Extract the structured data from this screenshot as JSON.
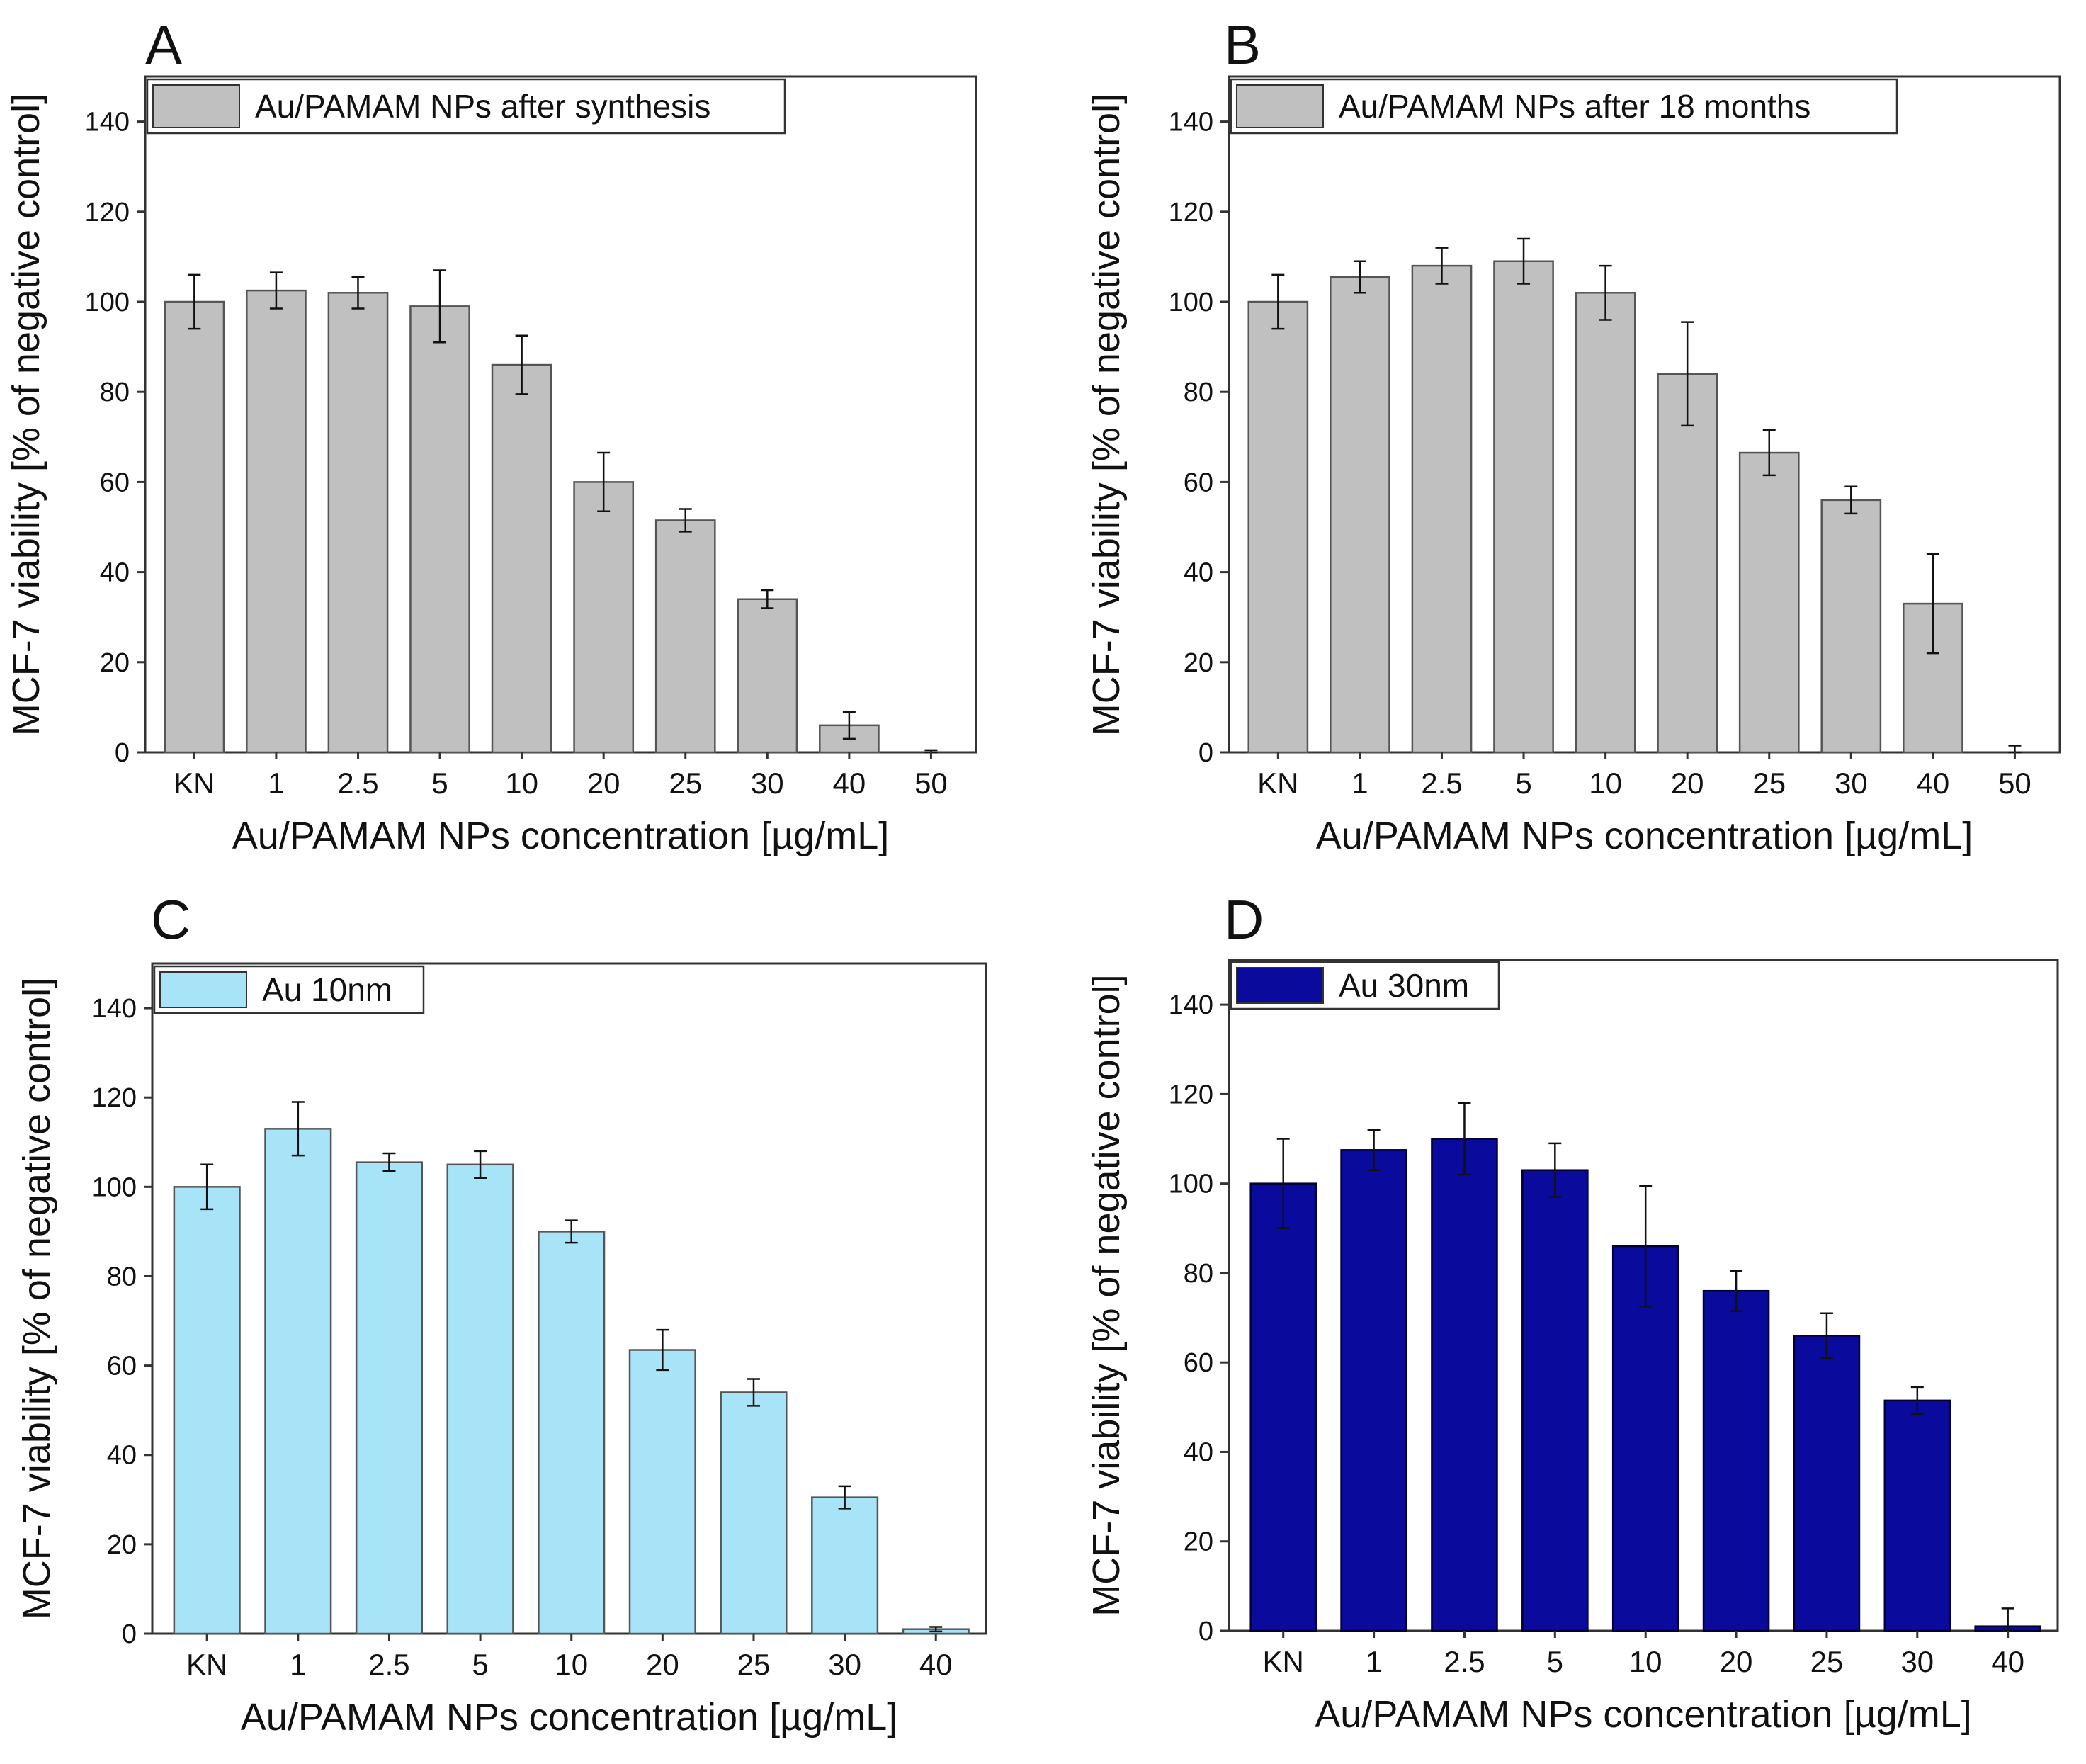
{
  "chart_data": [
    {
      "panel": "A",
      "type": "bar",
      "title": "",
      "legend": "Au/PAMAM  NPs after synthesis",
      "legend_position": "top-left",
      "bar_color": "#c0c0c0",
      "xlabel": "Au/PAMAM NPs concentration [µg/mL]",
      "ylabel": "MCF-7 viability [% of negative control]",
      "ylim": [
        0,
        150
      ],
      "yticks": [
        "0",
        "20",
        "40",
        "60",
        "80",
        "100",
        "120",
        "140"
      ],
      "categories": [
        "KN",
        "1",
        "2.5",
        "5",
        "10",
        "20",
        "25",
        "30",
        "40",
        "50"
      ],
      "values": [
        100,
        102.5,
        102,
        99,
        86,
        60,
        51.5,
        34,
        6,
        0
      ],
      "errors": [
        6,
        4,
        3.5,
        8,
        6.5,
        6.5,
        2.5,
        2,
        3,
        0.5
      ]
    },
    {
      "panel": "B",
      "type": "bar",
      "title": "",
      "legend": "Au/PAMAM  NPs after 18 months",
      "legend_position": "top-left",
      "bar_color": "#c0c0c0",
      "xlabel": "Au/PAMAM NPs concentration [µg/mL]",
      "ylabel": "MCF-7 viability [% of negative control]",
      "ylim": [
        0,
        150
      ],
      "yticks": [
        "0",
        "20",
        "40",
        "60",
        "80",
        "100",
        "120",
        "140"
      ],
      "categories": [
        "KN",
        "1",
        "2.5",
        "5",
        "10",
        "20",
        "25",
        "30",
        "40",
        "50"
      ],
      "values": [
        100,
        105.5,
        108,
        109,
        102,
        84,
        66.5,
        56,
        33,
        0
      ],
      "errors": [
        6,
        3.5,
        4,
        5,
        6,
        11.5,
        5,
        3,
        11,
        1.5
      ]
    },
    {
      "panel": "C",
      "type": "bar",
      "title": "",
      "legend": "Au  10nm",
      "legend_position": "top-left",
      "bar_color": "#a8e4f8",
      "xlabel": "Au/PAMAM NPs concentration [µg/mL]",
      "ylabel": "MCF-7 viability [% of negative control]",
      "ylim": [
        0,
        150
      ],
      "yticks": [
        "0",
        "20",
        "40",
        "60",
        "80",
        "100",
        "120",
        "140"
      ],
      "categories": [
        "KN",
        "1",
        "2.5",
        "5",
        "10",
        "20",
        "25",
        "30",
        "40"
      ],
      "values": [
        100,
        113,
        105.5,
        105,
        90,
        63.5,
        54,
        30.5,
        1
      ],
      "errors": [
        5,
        6,
        2,
        3,
        2.5,
        4.5,
        3,
        2.5,
        0.5
      ]
    },
    {
      "panel": "D",
      "type": "bar",
      "title": "",
      "legend": "Au  30nm",
      "legend_position": "top-left",
      "bar_color": "#0a0a9c",
      "xlabel": "Au/PAMAM NPs concentration [µg/mL]",
      "ylabel": "MCF-7 viability [% of negative control]",
      "ylim": [
        0,
        150
      ],
      "yticks": [
        "0",
        "20",
        "40",
        "60",
        "80",
        "100",
        "120",
        "140"
      ],
      "categories": [
        "KN",
        "1",
        "2.5",
        "5",
        "10",
        "20",
        "25",
        "30",
        "40"
      ],
      "values": [
        100,
        107.5,
        110,
        103,
        86,
        76,
        66,
        51.5,
        1
      ],
      "errors": [
        10,
        4.5,
        8,
        6,
        13.5,
        4.5,
        5,
        3,
        4
      ]
    }
  ]
}
